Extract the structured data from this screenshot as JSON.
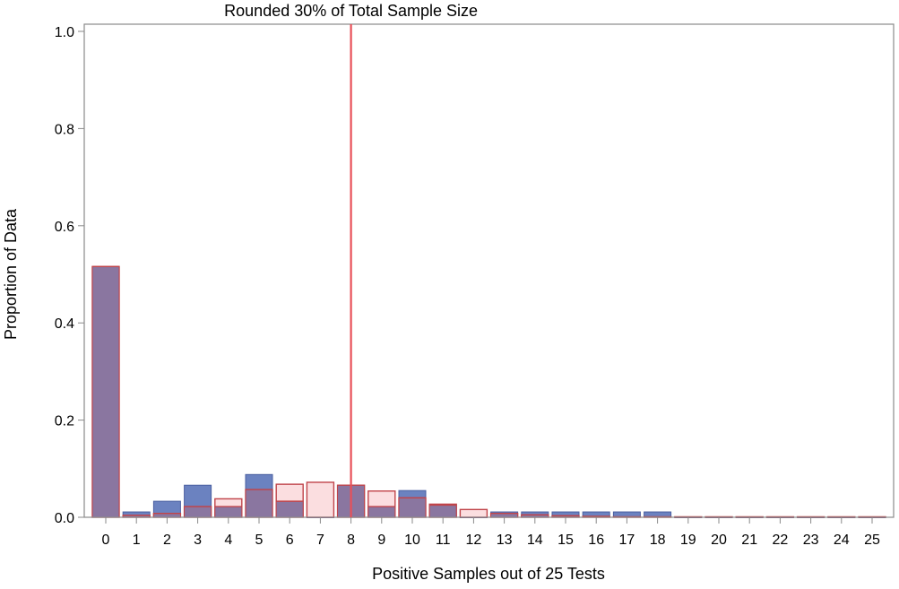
{
  "chart_data": {
    "type": "bar",
    "title": "",
    "annotation": "Rounded 30% of Total Sample Size",
    "xlabel": "Positive Samples out of 25 Tests",
    "ylabel": "Proportion of Data",
    "categories": [
      "0",
      "1",
      "2",
      "3",
      "4",
      "5",
      "6",
      "7",
      "8",
      "9",
      "10",
      "11",
      "12",
      "13",
      "14",
      "15",
      "16",
      "17",
      "18",
      "19",
      "20",
      "21",
      "22",
      "23",
      "24",
      "25"
    ],
    "ylim": [
      0,
      1.0
    ],
    "yticks": [
      "0.0",
      "0.2",
      "0.4",
      "0.6",
      "0.8",
      "1.0"
    ],
    "reference_line_x": 8,
    "grid": false,
    "series": [
      {
        "values": [
          0.516,
          0.011,
          0.033,
          0.066,
          0.022,
          0.088,
          0.033,
          0.0,
          0.066,
          0.022,
          0.055,
          0.025,
          0.0,
          0.011,
          0.011,
          0.011,
          0.011,
          0.011,
          0.011,
          0.0,
          0.0,
          0.0,
          0.0,
          0.0,
          0.0,
          0.0
        ],
        "fill": "#6b82c0",
        "stroke": "#4a5fa0"
      },
      {
        "values": [
          0.516,
          0.004,
          0.008,
          0.022,
          0.038,
          0.057,
          0.068,
          0.072,
          0.066,
          0.054,
          0.04,
          0.027,
          0.016,
          0.008,
          0.005,
          0.003,
          0.002,
          0.001,
          0.001,
          0.001,
          0.001,
          0.001,
          0.001,
          0.001,
          0.001,
          0.001
        ],
        "fill": "#f7c3c6",
        "stroke": "#c0444a"
      }
    ],
    "colors": {
      "reference_line": "#e85058",
      "overlap": "#8a76a0",
      "axis": "#8a8a8a"
    }
  }
}
